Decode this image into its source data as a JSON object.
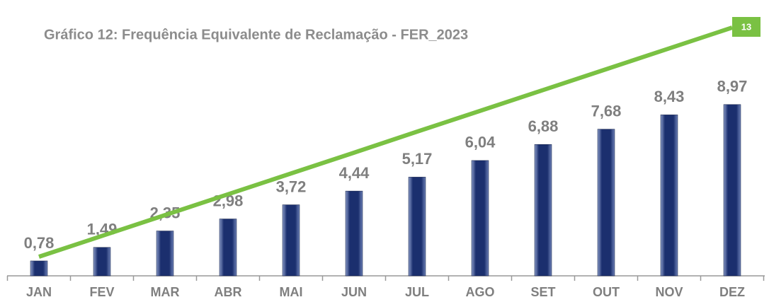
{
  "chart_data": {
    "type": "bar",
    "title": "Gráfico 12: Frequência Equivalente de Reclamação - FER_2023",
    "categories": [
      "JAN",
      "FEV",
      "MAR",
      "ABR",
      "MAI",
      "JUN",
      "JUL",
      "AGO",
      "SET",
      "OUT",
      "NOV",
      "DEZ"
    ],
    "values": [
      0.78,
      1.49,
      2.35,
      2.98,
      3.72,
      4.44,
      5.17,
      6.04,
      6.88,
      7.68,
      8.43,
      8.97
    ],
    "value_labels": [
      "0,78",
      "1,49",
      "2,35",
      "2,98",
      "3,72",
      "4,44",
      "5,17",
      "6,04",
      "6,88",
      "7,68",
      "8,43",
      "8,97"
    ],
    "color": "#1b2f6e",
    "line": {
      "color": "#7ac143",
      "values": [
        1.0,
        2.09,
        3.18,
        4.27,
        5.36,
        6.45,
        7.55,
        8.64,
        9.73,
        10.82,
        11.91,
        13
      ]
    },
    "ylim": [
      0,
      14
    ]
  }
}
